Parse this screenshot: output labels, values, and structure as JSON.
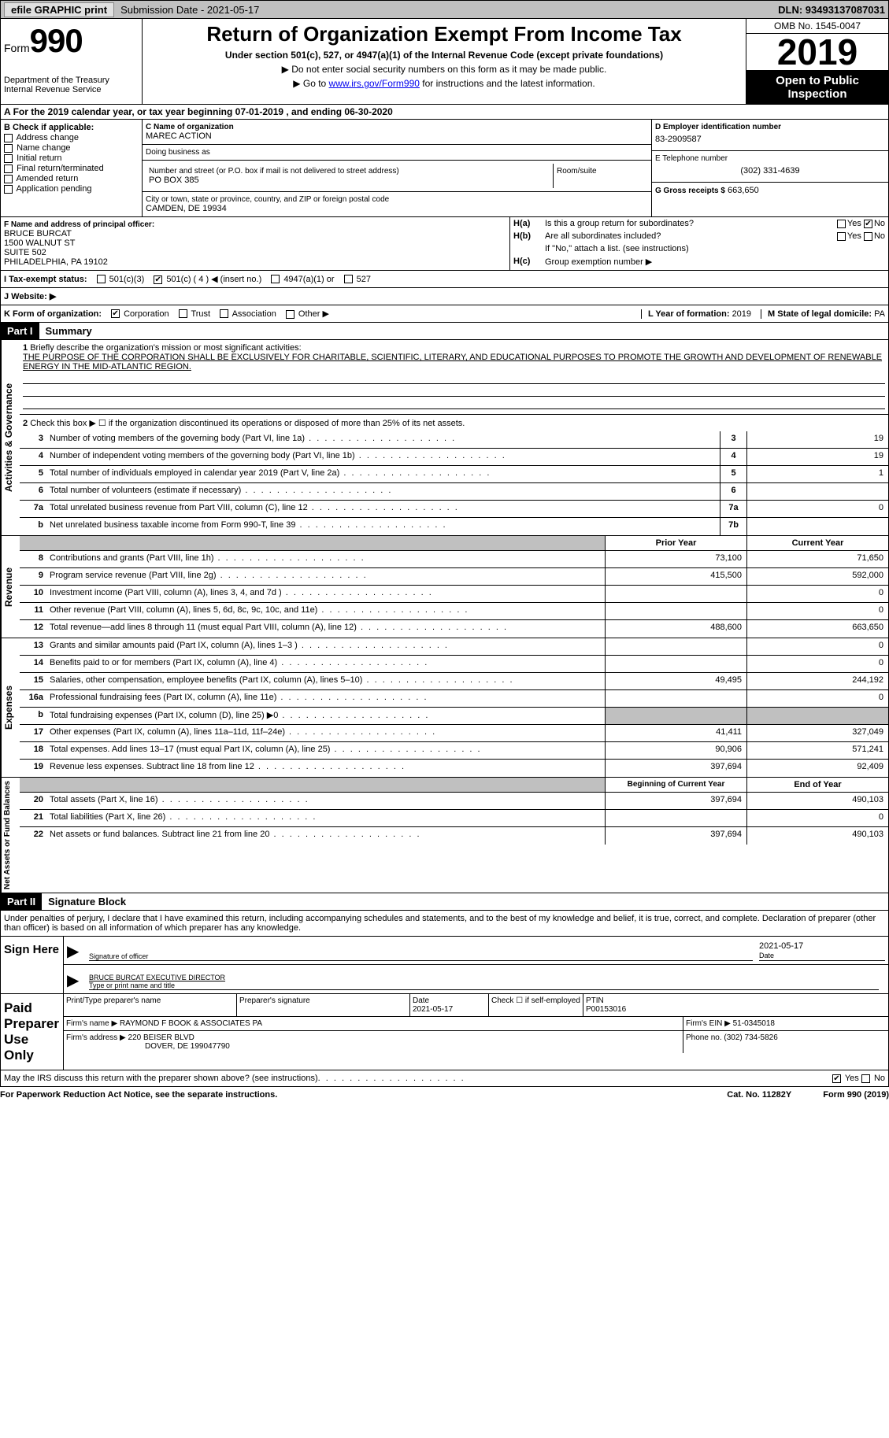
{
  "topbar": {
    "efile": "efile GRAPHIC print",
    "submission": "Submission Date - 2021-05-17",
    "dln": "DLN: 93493137087031"
  },
  "header": {
    "form_label": "Form",
    "form_no": "990",
    "dept": "Department of the Treasury\nInternal Revenue Service",
    "title": "Return of Organization Exempt From Income Tax",
    "subtitle": "Under section 501(c), 527, or 4947(a)(1) of the Internal Revenue Code (except private foundations)",
    "note1": "▶ Do not enter social security numbers on this form as it may be made public.",
    "note2_pre": "▶ Go to ",
    "note2_link": "www.irs.gov/Form990",
    "note2_post": " for instructions and the latest information.",
    "omb": "OMB No. 1545-0047",
    "year": "2019",
    "otp": "Open to Public Inspection"
  },
  "line_a": "For the 2019 calendar year, or tax year beginning 07-01-2019  , and ending 06-30-2020",
  "box_b": {
    "title": "B Check if applicable:",
    "opts": [
      "Address change",
      "Name change",
      "Initial return",
      "Final return/terminated",
      "Amended return",
      "Application pending"
    ]
  },
  "box_c": {
    "name_label": "C Name of organization",
    "name": "MAREC ACTION",
    "dba_label": "Doing business as",
    "dba": "",
    "street_label": "Number and street (or P.O. box if mail is not delivered to street address)",
    "street": "PO BOX 385",
    "room_label": "Room/suite",
    "room": "",
    "city_label": "City or town, state or province, country, and ZIP or foreign postal code",
    "city": "CAMDEN, DE  19934"
  },
  "box_d": {
    "label": "D Employer identification number",
    "value": "83-2909587"
  },
  "box_e": {
    "label": "E Telephone number",
    "value": "(302) 331-4639"
  },
  "box_g": {
    "label": "G Gross receipts $",
    "value": "663,650"
  },
  "box_f": {
    "label": "F Name and address of principal officer:",
    "l1": "BRUCE BURCAT",
    "l2": "1500 WALNUT ST",
    "l3": "SUITE 502",
    "l4": "PHILADELPHIA, PA  19102"
  },
  "box_h": {
    "a_label": "H(a)",
    "a_text": "Is this a group return for subordinates?",
    "a_yes": "Yes",
    "a_no": "No",
    "b_label": "H(b)",
    "b_text": "Are all subordinates included?",
    "b_yes": "Yes",
    "b_no": "No",
    "b_note": "If \"No,\" attach a list. (see instructions)",
    "c_label": "H(c)",
    "c_text": "Group exemption number ▶"
  },
  "line_i": {
    "label": "I  Tax-exempt status:",
    "o1": "501(c)(3)",
    "o2": "501(c) ( 4 ) ◀ (insert no.)",
    "o3": "4947(a)(1) or",
    "o4": "527"
  },
  "line_j": "J  Website: ▶",
  "line_k": {
    "label": "K Form of organization:",
    "o1": "Corporation",
    "o2": "Trust",
    "o3": "Association",
    "o4": "Other ▶",
    "l_label": "L Year of formation:",
    "l_val": "2019",
    "m_label": "M State of legal domicile:",
    "m_val": "PA"
  },
  "part1": {
    "header": "Part I",
    "title": "Summary",
    "side_gov": "Activities & Governance",
    "side_rev": "Revenue",
    "side_exp": "Expenses",
    "side_net": "Net Assets or Fund Balances",
    "q1_label": "1",
    "q1_text": "Briefly describe the organization's mission or most significant activities:",
    "q1_mission": "THE PURPOSE OF THE CORPORATION SHALL BE EXCLUSIVELY FOR CHARITABLE, SCIENTIFIC, LITERARY, AND EDUCATIONAL PURPOSES TO PROMOTE THE GROWTH AND DEVELOPMENT OF RENEWABLE ENERGY IN THE MID-ATLANTIC REGION.",
    "q2_label": "2",
    "q2_text": "Check this box ▶ ☐ if the organization discontinued its operations or disposed of more than 25% of its net assets.",
    "lines_gov": [
      {
        "n": "3",
        "t": "Number of voting members of the governing body (Part VI, line 1a)",
        "b": "3",
        "v": "19"
      },
      {
        "n": "4",
        "t": "Number of independent voting members of the governing body (Part VI, line 1b)",
        "b": "4",
        "v": "19"
      },
      {
        "n": "5",
        "t": "Total number of individuals employed in calendar year 2019 (Part V, line 2a)",
        "b": "5",
        "v": "1"
      },
      {
        "n": "6",
        "t": "Total number of volunteers (estimate if necessary)",
        "b": "6",
        "v": ""
      },
      {
        "n": "7a",
        "t": "Total unrelated business revenue from Part VIII, column (C), line 12",
        "b": "7a",
        "v": "0"
      },
      {
        "n": "b",
        "t": "Net unrelated business taxable income from Form 990-T, line 39",
        "b": "7b",
        "v": ""
      }
    ],
    "hdr_prior": "Prior Year",
    "hdr_current": "Current Year",
    "lines_rev": [
      {
        "n": "8",
        "t": "Contributions and grants (Part VIII, line 1h)",
        "p": "73,100",
        "c": "71,650"
      },
      {
        "n": "9",
        "t": "Program service revenue (Part VIII, line 2g)",
        "p": "415,500",
        "c": "592,000"
      },
      {
        "n": "10",
        "t": "Investment income (Part VIII, column (A), lines 3, 4, and 7d )",
        "p": "",
        "c": "0"
      },
      {
        "n": "11",
        "t": "Other revenue (Part VIII, column (A), lines 5, 6d, 8c, 9c, 10c, and 11e)",
        "p": "",
        "c": "0"
      },
      {
        "n": "12",
        "t": "Total revenue—add lines 8 through 11 (must equal Part VIII, column (A), line 12)",
        "p": "488,600",
        "c": "663,650"
      }
    ],
    "lines_exp": [
      {
        "n": "13",
        "t": "Grants and similar amounts paid (Part IX, column (A), lines 1–3 )",
        "p": "",
        "c": "0"
      },
      {
        "n": "14",
        "t": "Benefits paid to or for members (Part IX, column (A), line 4)",
        "p": "",
        "c": "0"
      },
      {
        "n": "15",
        "t": "Salaries, other compensation, employee benefits (Part IX, column (A), lines 5–10)",
        "p": "49,495",
        "c": "244,192"
      },
      {
        "n": "16a",
        "t": "Professional fundraising fees (Part IX, column (A), line 11e)",
        "p": "",
        "c": "0"
      },
      {
        "n": "b",
        "t": "Total fundraising expenses (Part IX, column (D), line 25) ▶0",
        "p": "grey",
        "c": "grey"
      },
      {
        "n": "17",
        "t": "Other expenses (Part IX, column (A), lines 11a–11d, 11f–24e)",
        "p": "41,411",
        "c": "327,049"
      },
      {
        "n": "18",
        "t": "Total expenses. Add lines 13–17 (must equal Part IX, column (A), line 25)",
        "p": "90,906",
        "c": "571,241"
      },
      {
        "n": "19",
        "t": "Revenue less expenses. Subtract line 18 from line 12",
        "p": "397,694",
        "c": "92,409"
      }
    ],
    "hdr_begin": "Beginning of Current Year",
    "hdr_end": "End of Year",
    "lines_net": [
      {
        "n": "20",
        "t": "Total assets (Part X, line 16)",
        "p": "397,694",
        "c": "490,103"
      },
      {
        "n": "21",
        "t": "Total liabilities (Part X, line 26)",
        "p": "",
        "c": "0"
      },
      {
        "n": "22",
        "t": "Net assets or fund balances. Subtract line 21 from line 20",
        "p": "397,694",
        "c": "490,103"
      }
    ]
  },
  "part2": {
    "header": "Part II",
    "title": "Signature Block",
    "decl": "Under penalties of perjury, I declare that I have examined this return, including accompanying schedules and statements, and to the best of my knowledge and belief, it is true, correct, and complete. Declaration of preparer (other than officer) is based on all information of which preparer has any knowledge.",
    "sign_here": "Sign Here",
    "sig_officer_label": "Signature of officer",
    "sig_date": "2021-05-17",
    "sig_date_label": "Date",
    "officer_name": "BRUCE BURCAT EXECUTIVE DIRECTOR",
    "officer_name_label": "Type or print name and title",
    "paid_prep": "Paid Preparer Use Only",
    "prep_name_label": "Print/Type preparer's name",
    "prep_sig_label": "Preparer's signature",
    "prep_date_label": "Date",
    "prep_date": "2021-05-17",
    "prep_check_label": "Check ☐ if self-employed",
    "ptin_label": "PTIN",
    "ptin": "P00153016",
    "firm_name_label": "Firm's name   ▶",
    "firm_name": "RAYMOND F BOOK & ASSOCIATES PA",
    "firm_ein_label": "Firm's EIN ▶",
    "firm_ein": "51-0345018",
    "firm_addr_label": "Firm's address ▶",
    "firm_addr1": "220 BEISER BLVD",
    "firm_addr2": "DOVER, DE  199047790",
    "firm_phone_label": "Phone no.",
    "firm_phone": "(302) 734-5826",
    "discuss": "May the IRS discuss this return with the preparer shown above? (see instructions)",
    "yes": "Yes",
    "no": "No"
  },
  "footer": {
    "pra": "For Paperwork Reduction Act Notice, see the separate instructions.",
    "cat": "Cat. No. 11282Y",
    "form": "Form 990 (2019)"
  }
}
